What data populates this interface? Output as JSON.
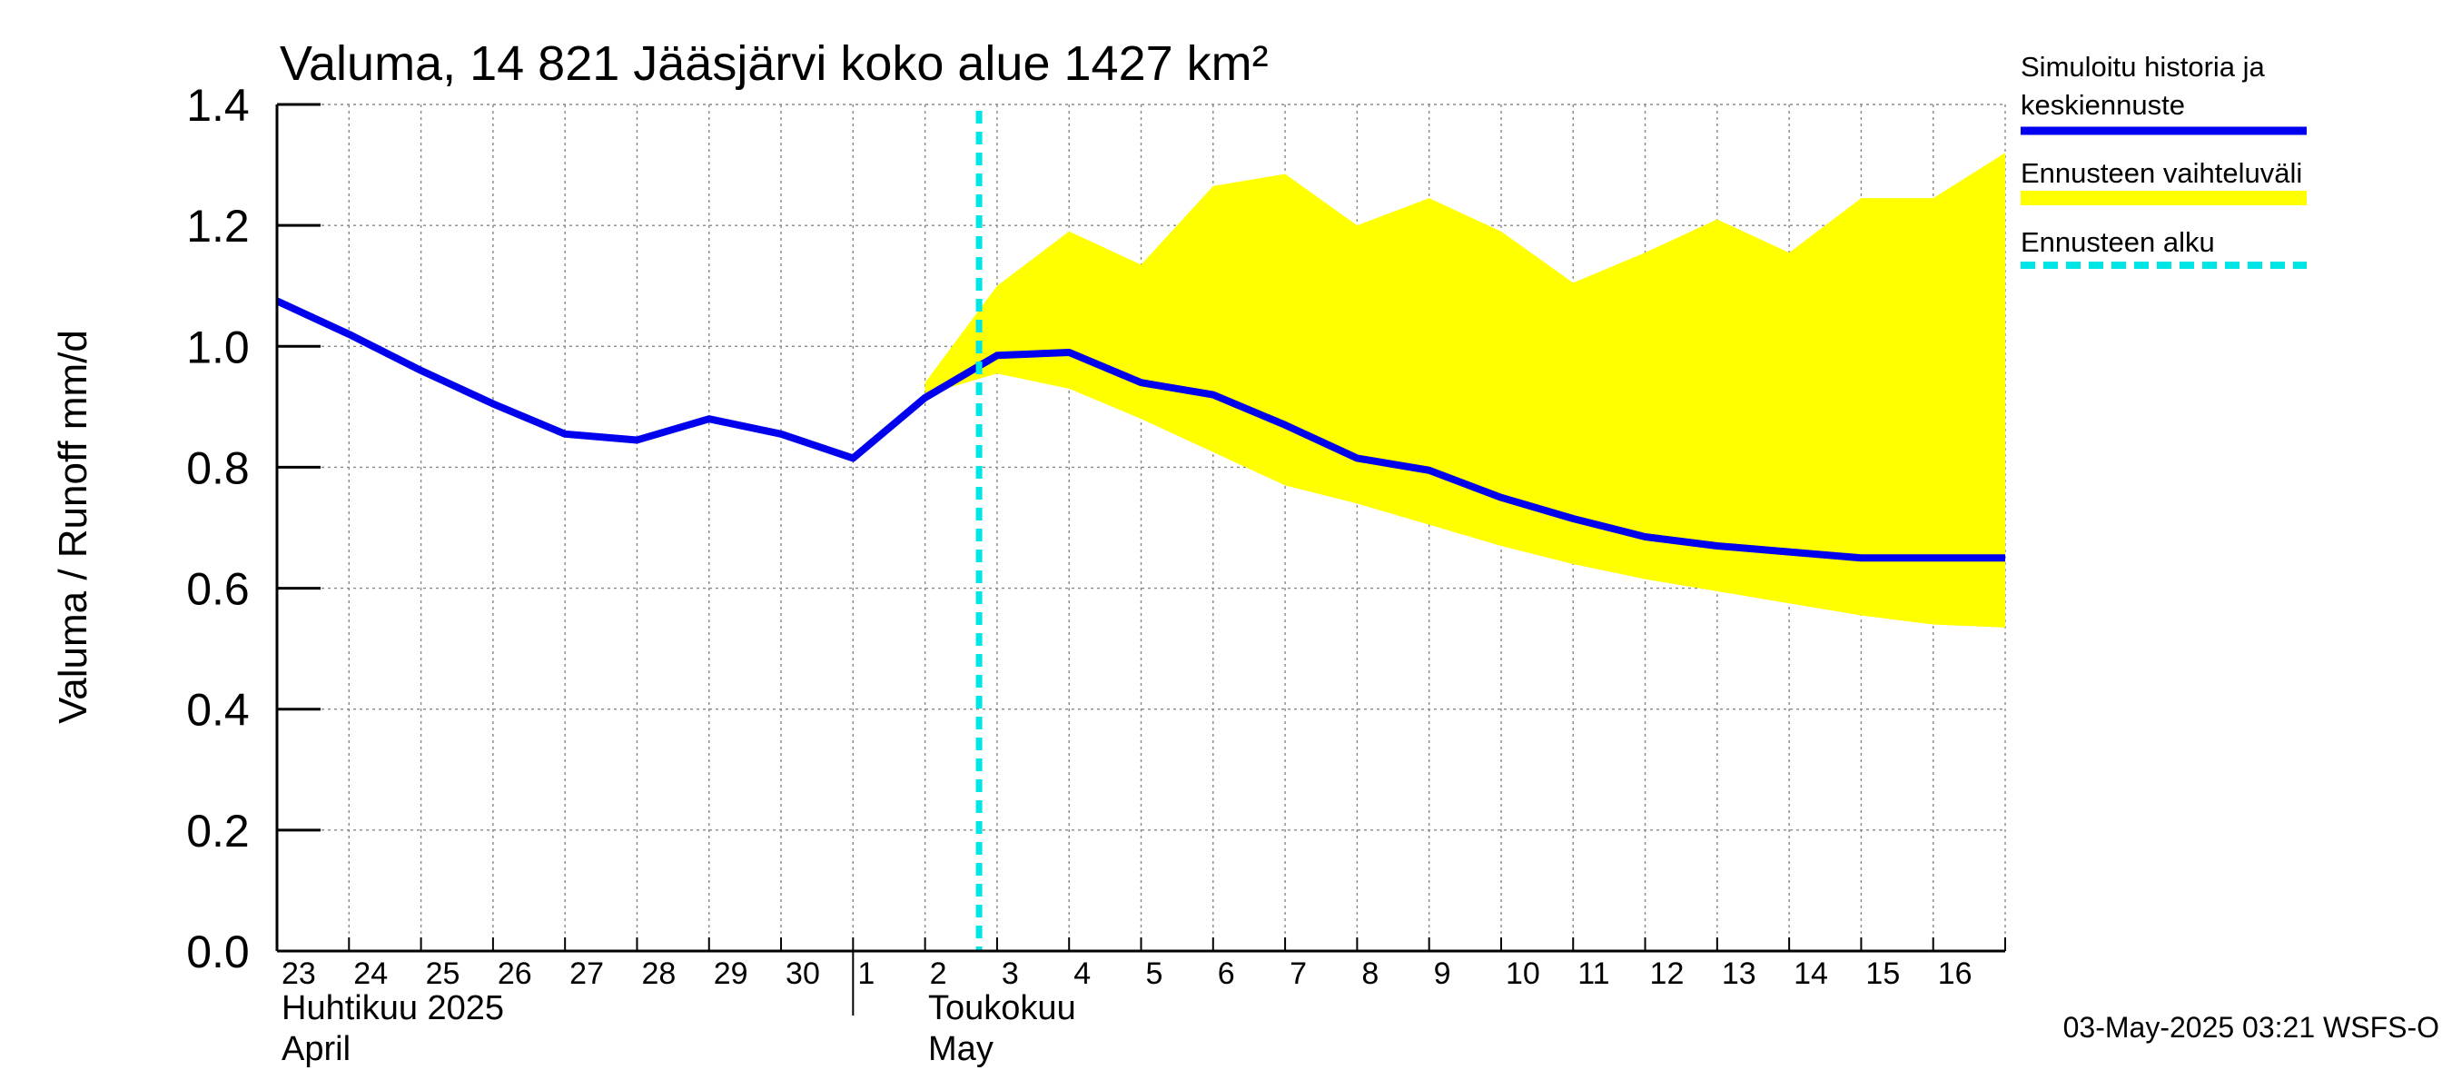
{
  "chart_data": {
    "type": "line",
    "title": "Valuma, 14 821 Jääsjärvi koko alue 1427 km²",
    "ylabel": "Valuma / Runoff    mm/d",
    "ylim": [
      0.0,
      1.4
    ],
    "yticks": [
      "0.0",
      "0.2",
      "0.4",
      "0.6",
      "0.8",
      "1.0",
      "1.2",
      "1.4"
    ],
    "x": [
      "2025-04-23",
      "2025-04-24",
      "2025-04-25",
      "2025-04-26",
      "2025-04-27",
      "2025-04-28",
      "2025-04-29",
      "2025-04-30",
      "2025-05-01",
      "2025-05-02",
      "2025-05-03",
      "2025-05-04",
      "2025-05-05",
      "2025-05-06",
      "2025-05-07",
      "2025-05-08",
      "2025-05-09",
      "2025-05-10",
      "2025-05-11",
      "2025-05-12",
      "2025-05-13",
      "2025-05-14",
      "2025-05-15",
      "2025-05-16",
      "2025-05-17"
    ],
    "x_tick_labels": [
      "23",
      "24",
      "25",
      "26",
      "27",
      "28",
      "29",
      "30",
      "1",
      "2",
      "3",
      "4",
      "5",
      "6",
      "7",
      "8",
      "9",
      "10",
      "11",
      "12",
      "13",
      "14",
      "15",
      "16"
    ],
    "month_labels": [
      {
        "line1": "Huhtikuu  2025",
        "line2": "April",
        "start": "2025-04-23"
      },
      {
        "line1": "Toukokuu",
        "line2": "May",
        "start": "2025-05-02"
      }
    ],
    "series": [
      {
        "name": "Simuloitu historia ja keskiennuste",
        "color": "#0000ee",
        "values": [
          1.075,
          1.02,
          0.96,
          0.905,
          0.855,
          0.845,
          0.88,
          0.855,
          0.815,
          0.915,
          0.985,
          0.99,
          0.94,
          0.92,
          0.87,
          0.815,
          0.795,
          0.75,
          0.715,
          0.685,
          0.67,
          0.66,
          0.65,
          0.65,
          0.65
        ]
      }
    ],
    "band": {
      "name": "Ennusteen vaihteluväli",
      "color": "#ffff00",
      "x_start": "2025-05-02",
      "upper": [
        0.94,
        1.1,
        1.19,
        1.135,
        1.265,
        1.285,
        1.2,
        1.245,
        1.19,
        1.105,
        1.155,
        1.21,
        1.155,
        1.245,
        1.245,
        1.32
      ],
      "lower": [
        0.92,
        0.955,
        0.93,
        0.88,
        0.825,
        0.77,
        0.74,
        0.705,
        0.67,
        0.64,
        0.615,
        0.595,
        0.575,
        0.555,
        0.54,
        0.535
      ]
    },
    "forecast_start": {
      "name": "Ennusteen alku",
      "color": "#00e5e5",
      "x": "2025-05-02 18:00"
    },
    "legend": [
      {
        "line1": "Simuloitu historia ja",
        "line2": "keskiennuste",
        "color": "#0000ee",
        "style": "solid"
      },
      {
        "line1": "Ennusteen vaihteluväli",
        "line2": "",
        "color": "#ffff00",
        "style": "thick"
      },
      {
        "line1": "Ennusteen alku",
        "line2": "",
        "color": "#00e5e5",
        "style": "dashed"
      }
    ],
    "legend_position": "right",
    "grid": true,
    "timestamp": "03-May-2025 03:21 WSFS-O"
  }
}
